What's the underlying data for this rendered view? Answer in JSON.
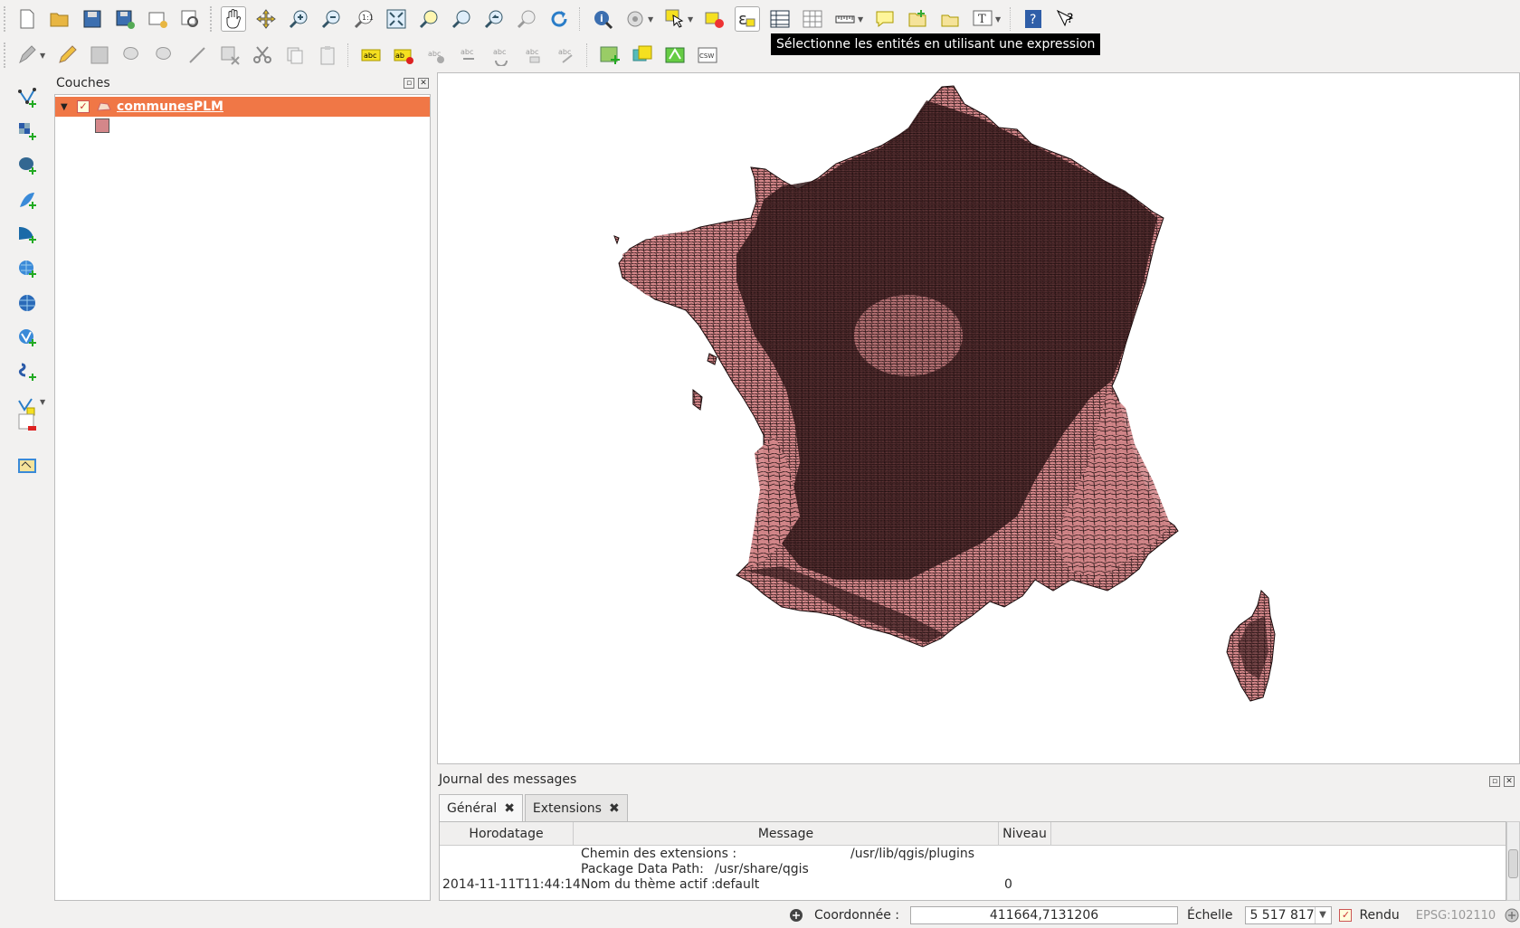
{
  "toolbar": {
    "tooltip": "Sélectionne les entités en utilisant une expression",
    "row1_icons": [
      "new-project-icon",
      "open-project-icon",
      "save-project-icon",
      "save-as-icon",
      "new-print-composer-icon",
      "composer-manager-icon",
      "pan-map-icon",
      "pan-to-selection-icon",
      "zoom-in-icon",
      "zoom-out-icon",
      "zoom-actual-size-icon",
      "zoom-full-icon",
      "zoom-to-selection-icon",
      "zoom-to-layer-icon",
      "zoom-last-icon",
      "zoom-next-icon",
      "refresh-icon",
      "identify-icon",
      "run-feature-action-icon",
      "select-features-icon",
      "deselect-all-icon",
      "select-by-expression-icon",
      "attribute-table-icon",
      "statistics-icon",
      "measure-line-icon",
      "map-tips-icon",
      "new-bookmark-icon",
      "show-bookmarks-icon",
      "text-annotation-icon",
      "help-icon",
      "whats-this-icon"
    ],
    "row2_icons": [
      "current-edits-icon",
      "toggle-editing-icon",
      "save-layer-edits-icon",
      "add-feature-icon",
      "move-feature-icon",
      "node-tool-icon",
      "delete-selected-icon",
      "cut-features-icon",
      "copy-features-icon",
      "paste-features-icon",
      "label-tool-icon",
      "pin-labels-icon",
      "show-hide-labels-icon",
      "move-label-icon",
      "rotate-label-icon",
      "change-label-icon",
      "undo-label-icon",
      "add-layer-plugin-icon",
      "sticky-notes-icon",
      "plugin-icon",
      "csw-icon"
    ]
  },
  "left_toolbar": {
    "icons": [
      "add-vector-layer-icon",
      "add-raster-layer-icon",
      "add-postgis-layer-icon",
      "add-spatialite-layer-icon",
      "add-mssql-layer-icon",
      "add-wms-layer-icon",
      "add-wcs-layer-icon",
      "add-wfs-layer-icon",
      "add-delimited-text-icon",
      "new-shapefile-icon",
      "remove-layer-icon",
      "add-csv-icon"
    ]
  },
  "layers_panel": {
    "title": "Couches",
    "layer_name": "communesPLM",
    "layer_checked": true,
    "symbol_color": "#d4878a"
  },
  "map": {
    "fill_color": "#d4878a",
    "stroke_color": "#1a0b0c",
    "background": "#ffffff"
  },
  "messages": {
    "title": "Journal des messages",
    "tabs": [
      {
        "label": "Général",
        "active": true
      },
      {
        "label": "Extensions",
        "active": false
      }
    ],
    "columns": [
      "Horodatage",
      "Message",
      "Niveau"
    ],
    "lines": [
      {
        "key": "Chemin des extensions :",
        "value": "/usr/lib/qgis/plugins"
      },
      {
        "key": "Package Data Path:",
        "value": "/usr/share/qgis"
      },
      {
        "key": "Nom du thème actif :",
        "value": "default"
      }
    ],
    "timestamp": "2014-11-11T11:44:14",
    "level": "0"
  },
  "status": {
    "coord_label": "Coordonnée :",
    "coord_value": "411664,7131206",
    "scale_label": "Échelle",
    "scale_value": "5 517 817",
    "render_label": "Rendu",
    "render_checked": true,
    "crs": "EPSG:102110"
  },
  "accent": "#f07746"
}
